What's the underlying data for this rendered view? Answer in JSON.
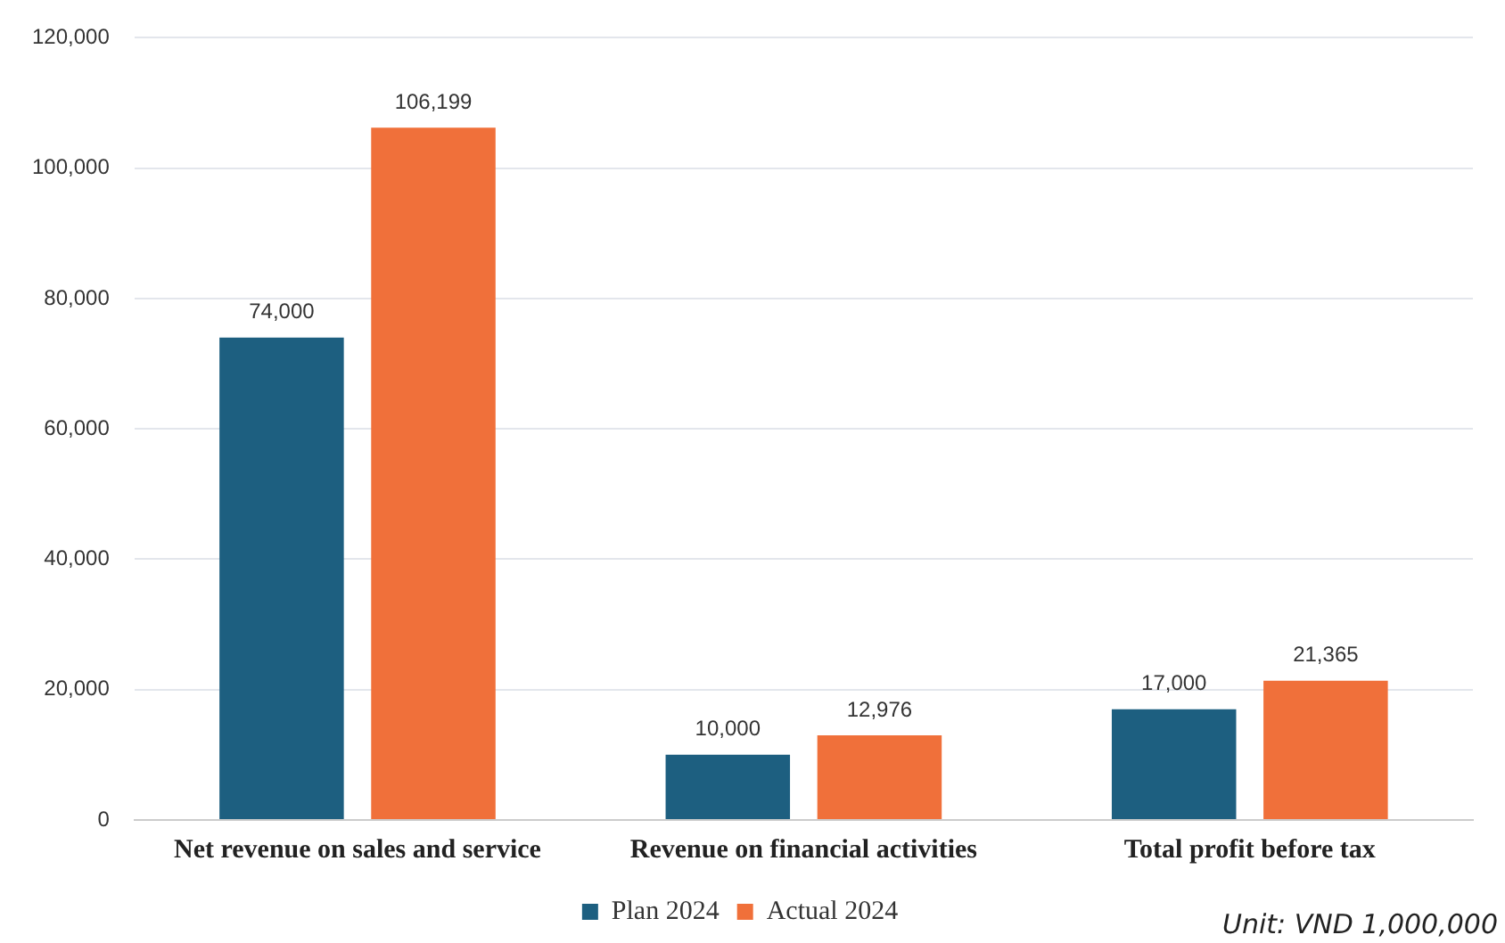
{
  "chart_data": {
    "type": "bar",
    "categories": [
      "Net revenue on sales and service",
      "Revenue on financial activities",
      "Total profit before tax"
    ],
    "series": [
      {
        "name": "Plan 2024",
        "color": "#1d5f80",
        "values": [
          74000,
          10000,
          17000
        ],
        "value_labels": [
          "74,000",
          "10,000",
          "17,000"
        ]
      },
      {
        "name": "Actual 2024",
        "color": "#f0703a",
        "values": [
          106199,
          12976,
          21365
        ],
        "value_labels": [
          "106,199",
          "12,976",
          "21,365"
        ]
      }
    ],
    "ylim": [
      0,
      120000
    ],
    "yticks": [
      0,
      {
        "value": 20000,
        "label": "20,000"
      },
      {
        "value": 40000,
        "label": "40,000"
      },
      {
        "value": 60000,
        "label": "60,000"
      },
      {
        "value": 80000,
        "label": "80,000"
      },
      {
        "value": 100000,
        "label": "100,000"
      },
      {
        "value": 120000,
        "label": "120,000"
      }
    ],
    "grid": "y",
    "legend": "bottom",
    "annotations": [
      "Unit: VND 1,000,000"
    ]
  }
}
